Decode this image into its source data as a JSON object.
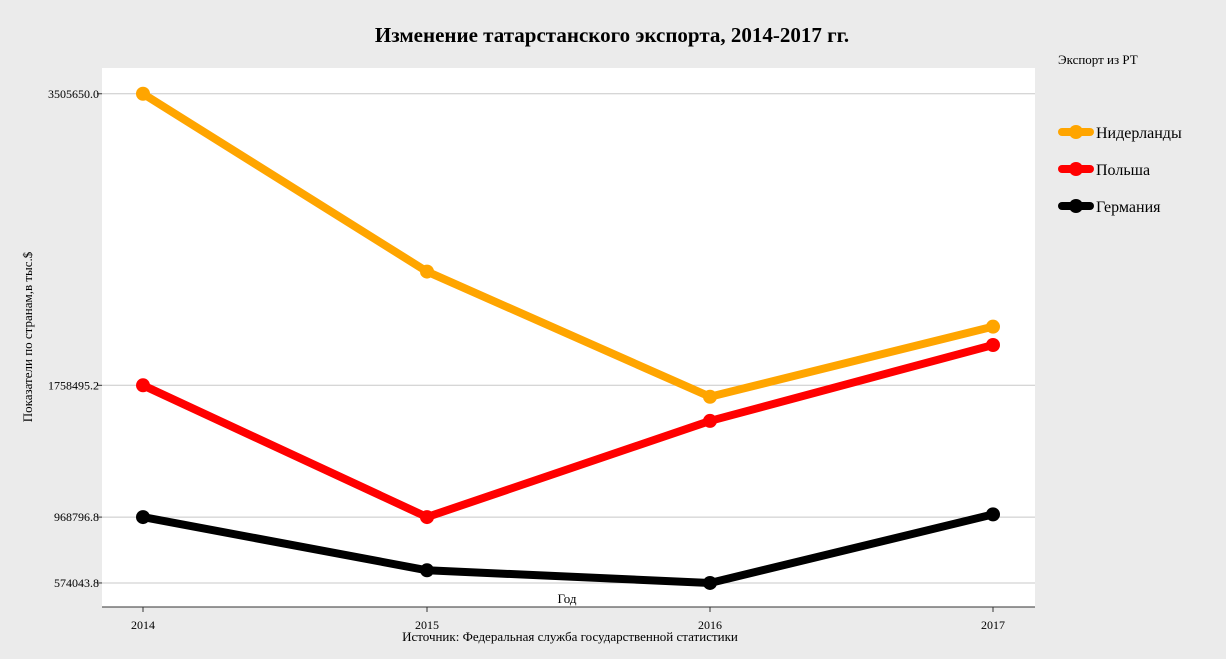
{
  "chart_data": {
    "type": "line",
    "title": "Изменение татарстанского экспорта, 2014-2017 гг.",
    "xlabel": "Год",
    "ylabel": "Показатели по странам,в тыс.$",
    "caption": "Источник: Федеральная служба государственной статистики",
    "x": [
      2014,
      2015,
      2016,
      2017
    ],
    "x_tick_labels": [
      "2014",
      "2015",
      "2016",
      "2017"
    ],
    "y_ticks": [
      574043.8,
      968796.8,
      1758495.2,
      3505650.0
    ],
    "y_tick_labels": [
      "574043.8",
      "968796.8",
      "1758495.2",
      "3505650.0"
    ],
    "ylim": [
      430000,
      3660000
    ],
    "grid": true,
    "legend": {
      "title": "Экспорт из РТ",
      "position": "right"
    },
    "series": [
      {
        "name": "Нидерланды",
        "color": "#FFA500",
        "values": [
          3505650.0,
          2440000,
          1690000,
          2110000
        ]
      },
      {
        "name": "Польша",
        "color": "#FF0000",
        "values": [
          1758495.2,
          968796.8,
          1545000,
          2000000
        ]
      },
      {
        "name": "Германия",
        "color": "#000000",
        "values": [
          968796.8,
          650000,
          574043.8,
          985000
        ]
      }
    ]
  }
}
